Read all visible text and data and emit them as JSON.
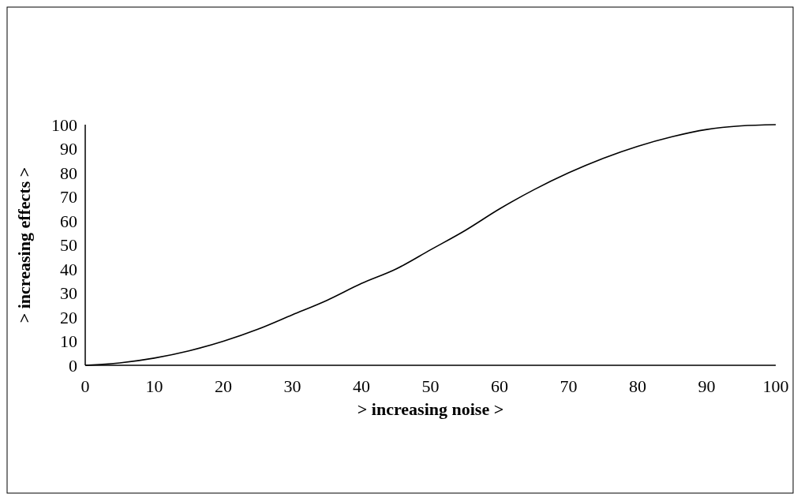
{
  "chart_data": {
    "type": "line",
    "xlabel": "> increasing noise >",
    "ylabel": "> increasing effects >",
    "x": [
      0,
      5,
      10,
      15,
      20,
      25,
      30,
      35,
      40,
      45,
      50,
      55,
      60,
      65,
      70,
      75,
      80,
      85,
      90,
      95,
      100
    ],
    "series": [
      {
        "color": "#000000",
        "values": [
          0,
          1,
          3,
          6,
          10,
          15,
          21,
          27,
          34,
          40,
          48,
          56,
          65,
          73,
          80,
          86,
          91,
          95,
          98,
          99.5,
          100
        ]
      }
    ],
    "xlim": [
      0,
      100
    ],
    "ylim": [
      0,
      100
    ],
    "xticks": [
      0,
      10,
      20,
      30,
      40,
      50,
      60,
      70,
      80,
      90,
      100
    ],
    "yticks": [
      0,
      10,
      20,
      30,
      40,
      50,
      60,
      70,
      80,
      90,
      100
    ],
    "grid": false,
    "marker": "none",
    "line_style": "solid"
  }
}
